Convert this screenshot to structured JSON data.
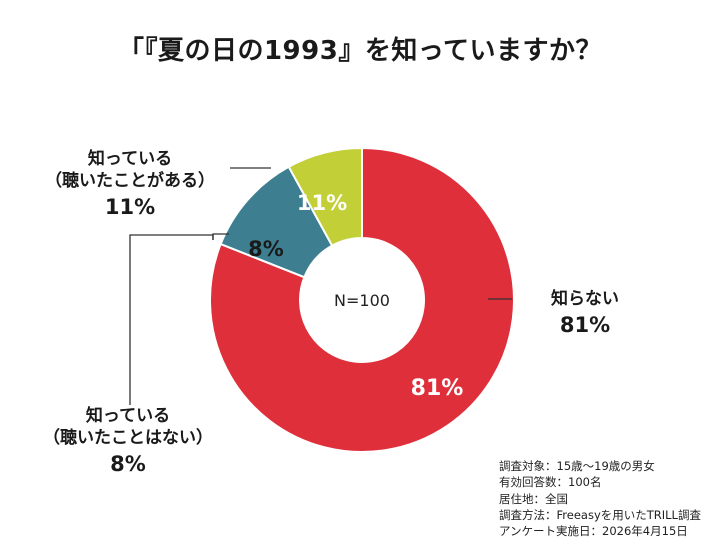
{
  "title": "「『夏の日の1993』を知っていますか？",
  "chart_data": {
    "type": "pie",
    "donut": true,
    "center_label": "N=100",
    "slices": [
      {
        "key": "unknown",
        "label": "知らない",
        "value": 81,
        "display": "81%",
        "color": "#de2f3a"
      },
      {
        "key": "heard",
        "label_line1": "知っている",
        "label_line2": "（聴いたことがある）",
        "value": 11,
        "display": "11%",
        "color": "#3d7f91"
      },
      {
        "key": "notheard",
        "label_line1": "知っている",
        "label_line2": "（聴いたことはない）",
        "value": 8,
        "display": "8%",
        "color": "#c3cf37"
      }
    ]
  },
  "notes": [
    "調査対象：15歳〜19歳の男女",
    "有効回答数：100名",
    "居住地：全国",
    "調査方法：Freeasyを用いたTRILL調査",
    "アンケート実施日：2026年4月15日"
  ]
}
